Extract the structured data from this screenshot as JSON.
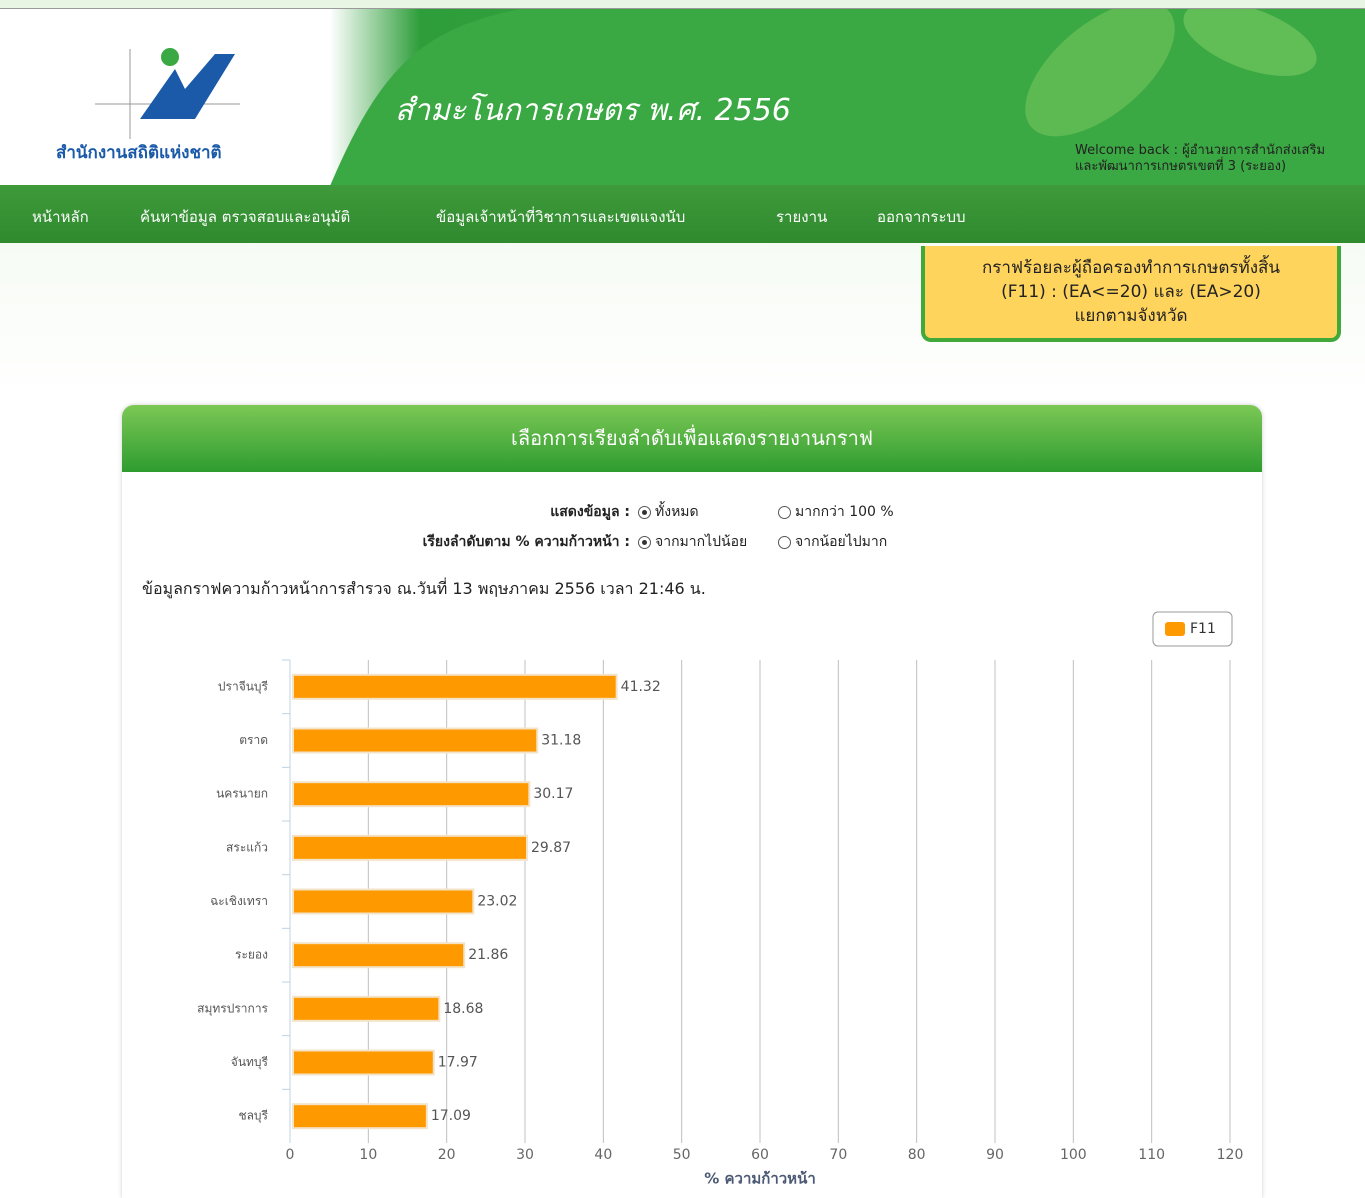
{
  "header": {
    "logo_text": "สำนักงานสถิติแห่งชาติ",
    "title": "สำมะโนการเกษตร พ.ศ. 2556",
    "welcome": [
      "Welcome back : ผู้อำนวยการสำนักส่งเสริม",
      "และพัฒนาการเกษตรเขตที่ 3 (ระยอง)"
    ]
  },
  "nav": [
    "หน้าหลัก",
    "ค้นหาข้อมูล ตรวจสอบและอนุมัติ",
    "ข้อมูลเจ้าหน้าที่วิชาการและเขตแจงนับ",
    "รายงาน",
    "ออกจากระบบ"
  ],
  "notice": [
    "กราฟร้อยละผู้ถือครองทำการเกษตรทั้งสิ้น",
    "(F11) : (EA<=20) และ (EA>20)",
    "แยกตามจังหวัด"
  ],
  "panel": {
    "title": "เลือกการเรียงลำดับเพื่อแสดงรายงานกราฟ",
    "options": [
      {
        "label": "แสดงข้อมูล :",
        "choices": [
          {
            "text": "ทั้งหมด",
            "checked": true
          },
          {
            "text": "มากกว่า 100 %",
            "checked": false
          }
        ]
      },
      {
        "label": "เรียงลำดับตาม % ความก้าวหน้า :",
        "choices": [
          {
            "text": "จากมากไปน้อย",
            "checked": true
          },
          {
            "text": "จากน้อยไปมาก",
            "checked": false
          }
        ]
      }
    ],
    "info": "ข้อมูลกราฟความก้าวหน้าการสำรวจ ณ.วันที่ 13 พฤษภาคม 2556 เวลา 21:46 น."
  },
  "chart_data": {
    "type": "bar",
    "orientation": "horizontal",
    "categories": [
      "ปราจีนบุรี",
      "ตราด",
      "นครนายก",
      "สระแก้ว",
      "ฉะเชิงเทรา",
      "ระยอง",
      "สมุทรปราการ",
      "จันทบุรี",
      "ชลบุรี"
    ],
    "series": [
      {
        "name": "F11",
        "color": "#ff9900",
        "values": [
          41.32,
          31.18,
          30.17,
          29.87,
          23.02,
          21.86,
          18.68,
          17.97,
          17.09
        ]
      }
    ],
    "xlim": [
      0,
      120
    ],
    "xticks": [
      0,
      10,
      20,
      30,
      40,
      50,
      60,
      70,
      80,
      90,
      100,
      110,
      120
    ],
    "x_label": "% ความก้าวหน้า",
    "grid": true,
    "legend": "top-right",
    "value_labels_shown": true
  }
}
